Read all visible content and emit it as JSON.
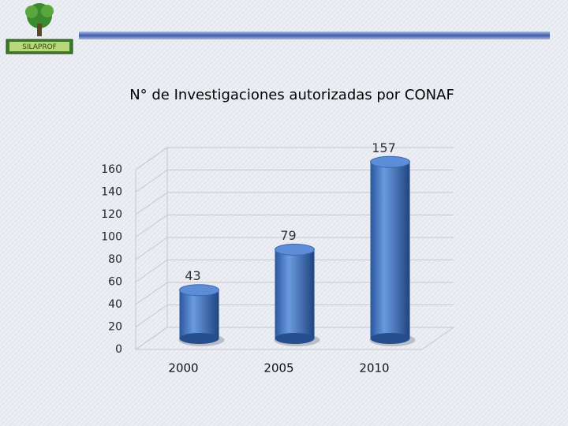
{
  "logo": {
    "label": "SILAPROF"
  },
  "chart_data": {
    "type": "bar3d",
    "title": "N° de Investigaciones autorizadas por CONAF",
    "categories": [
      "2000",
      "2005",
      "2010"
    ],
    "values": [
      43,
      79,
      157
    ],
    "color": "#3f74c0",
    "ylim": [
      0,
      160
    ],
    "yticks": [
      0,
      20,
      40,
      60,
      80,
      100,
      120,
      140,
      160
    ],
    "grid": true
  }
}
